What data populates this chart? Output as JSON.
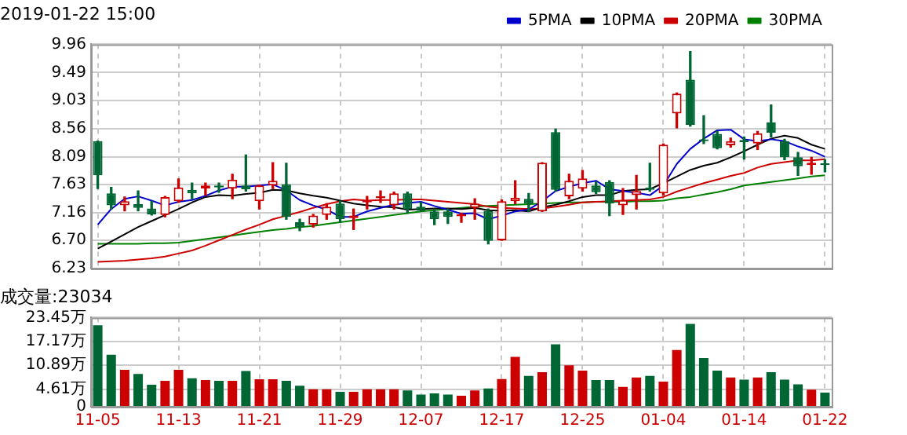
{
  "chart_data": [
    {
      "type": "candlestick",
      "title": "2019-01-22 15:00",
      "categories": [
        null,
        null,
        null,
        null,
        null,
        null,
        null,
        null,
        null,
        null,
        null,
        null,
        null,
        null,
        null,
        null,
        null,
        null,
        null,
        null,
        null,
        null,
        null,
        null,
        null,
        null,
        null,
        null,
        null,
        null,
        null,
        null,
        null,
        null,
        null,
        null,
        null,
        null,
        null,
        null,
        null,
        null,
        null,
        null,
        null,
        null,
        null,
        null,
        null,
        null,
        null,
        null,
        null,
        null,
        null
      ],
      "ohlc": [
        [
          8.35,
          8.35,
          7.56,
          7.78
        ],
        [
          7.48,
          7.58,
          7.22,
          7.28
        ],
        [
          7.28,
          7.42,
          7.19,
          7.35
        ],
        [
          7.3,
          7.52,
          7.19,
          7.24
        ],
        [
          7.23,
          7.35,
          7.12,
          7.13
        ],
        [
          7.12,
          7.43,
          7.09,
          7.42
        ],
        [
          7.35,
          7.72,
          7.33,
          7.58
        ],
        [
          7.54,
          7.65,
          7.39,
          7.48
        ],
        [
          7.56,
          7.65,
          7.45,
          7.61
        ],
        [
          7.61,
          7.65,
          7.5,
          7.58
        ],
        [
          7.56,
          7.8,
          7.39,
          7.71
        ],
        [
          7.61,
          8.12,
          7.52,
          7.55
        ],
        [
          7.35,
          7.62,
          7.22,
          7.61
        ],
        [
          7.61,
          7.99,
          7.56,
          7.69
        ],
        [
          7.63,
          7.98,
          7.05,
          7.09
        ],
        [
          7.0,
          7.05,
          6.86,
          6.92
        ],
        [
          6.96,
          7.13,
          6.92,
          7.11
        ],
        [
          7.12,
          7.31,
          7.05,
          7.26
        ],
        [
          7.31,
          7.35,
          7.0,
          7.05
        ],
        [
          7.07,
          7.22,
          6.88,
          7.11
        ],
        [
          7.33,
          7.43,
          7.22,
          7.37
        ],
        [
          7.4,
          7.52,
          7.33,
          7.43
        ],
        [
          7.28,
          7.5,
          7.22,
          7.48
        ],
        [
          7.48,
          7.5,
          7.15,
          7.22
        ],
        [
          7.26,
          7.33,
          7.18,
          7.19
        ],
        [
          7.18,
          7.22,
          6.96,
          7.05
        ],
        [
          7.18,
          7.22,
          6.98,
          7.09
        ],
        [
          7.1,
          7.15,
          7.0,
          7.13
        ],
        [
          7.24,
          7.39,
          7.05,
          7.31
        ],
        [
          7.19,
          7.22,
          6.64,
          6.69
        ],
        [
          6.7,
          7.37,
          6.7,
          7.35
        ],
        [
          7.35,
          7.69,
          7.31,
          7.41
        ],
        [
          7.39,
          7.48,
          7.18,
          7.31
        ],
        [
          7.18,
          7.99,
          7.18,
          7.99
        ],
        [
          8.5,
          8.55,
          7.52,
          7.54
        ],
        [
          7.43,
          7.8,
          7.39,
          7.69
        ],
        [
          7.56,
          7.86,
          7.52,
          7.73
        ],
        [
          7.61,
          7.67,
          7.48,
          7.5
        ],
        [
          7.67,
          7.69,
          7.11,
          7.31
        ],
        [
          7.28,
          7.56,
          7.13,
          7.37
        ],
        [
          7.45,
          7.78,
          7.22,
          7.52
        ],
        [
          7.58,
          7.98,
          7.52,
          7.54
        ],
        [
          7.48,
          8.3,
          7.45,
          8.29
        ],
        [
          8.81,
          9.15,
          8.57,
          9.14
        ],
        [
          9.37,
          9.84,
          8.6,
          8.62
        ],
        [
          8.38,
          8.77,
          8.31,
          8.35
        ],
        [
          8.47,
          8.51,
          8.22,
          8.23
        ],
        [
          8.28,
          8.4,
          8.25,
          8.35
        ],
        [
          8.37,
          8.42,
          8.05,
          8.33
        ],
        [
          8.31,
          8.51,
          8.21,
          8.48
        ],
        [
          8.66,
          8.95,
          8.42,
          8.49
        ],
        [
          8.35,
          8.38,
          8.04,
          8.08
        ],
        [
          8.08,
          8.16,
          7.78,
          7.93
        ],
        [
          7.95,
          8.08,
          7.8,
          7.99
        ],
        [
          7.98,
          8.04,
          7.84,
          7.95
        ]
      ],
      "colors": [
        "#006633",
        "#006633",
        "#cc0000",
        "#006633",
        "#006633",
        "#cc0000",
        "#cc0000",
        "#006633",
        "#cc0000",
        "#006633",
        "#cc0000",
        "#006633",
        "#cc0000",
        "#cc0000",
        "#006633",
        "#006633",
        "#cc0000",
        "#cc0000",
        "#006633",
        "#cc0000",
        "#cc0000",
        "#cc0000",
        "#cc0000",
        "#006633",
        "#006633",
        "#006633",
        "#006633",
        "#cc0000",
        "#cc0000",
        "#006633",
        "#cc0000",
        "#cc0000",
        "#006633",
        "#cc0000",
        "#006633",
        "#cc0000",
        "#cc0000",
        "#006633",
        "#006633",
        "#cc0000",
        "#cc0000",
        "#006633",
        "#cc0000",
        "#cc0000",
        "#006633",
        "#006633",
        "#006633",
        "#cc0000",
        "#006633",
        "#cc0000",
        "#006633",
        "#006633",
        "#006633",
        "#cc0000",
        "#006633"
      ],
      "series": [
        {
          "name": "5PMA",
          "type": "line",
          "color": "#0000cc",
          "values": [
            6.96,
            7.22,
            7.39,
            7.43,
            7.36,
            7.28,
            7.34,
            7.37,
            7.44,
            7.53,
            7.59,
            7.59,
            7.61,
            7.63,
            7.53,
            7.37,
            7.28,
            7.21,
            7.09,
            7.09,
            7.18,
            7.24,
            7.29,
            7.32,
            7.34,
            7.27,
            7.21,
            7.14,
            7.15,
            7.05,
            7.11,
            7.18,
            7.21,
            7.35,
            7.52,
            7.59,
            7.65,
            7.69,
            7.55,
            7.52,
            7.49,
            7.45,
            7.61,
            7.97,
            8.22,
            8.39,
            8.53,
            8.54,
            8.38,
            8.35,
            8.38,
            8.35,
            8.26,
            8.19,
            8.09
          ]
        },
        {
          "name": "10PMA",
          "type": "line",
          "color": "#000000",
          "values": [
            6.56,
            6.68,
            6.8,
            6.92,
            7.02,
            7.12,
            7.22,
            7.33,
            7.42,
            7.45,
            7.44,
            7.47,
            7.49,
            7.54,
            7.53,
            7.48,
            7.44,
            7.41,
            7.36,
            7.31,
            7.28,
            7.26,
            7.25,
            7.21,
            7.22,
            7.23,
            7.23,
            7.22,
            7.24,
            7.2,
            7.19,
            7.2,
            7.18,
            7.25,
            7.29,
            7.35,
            7.42,
            7.45,
            7.45,
            7.52,
            7.54,
            7.55,
            7.65,
            7.76,
            7.87,
            7.94,
            7.99,
            8.08,
            8.18,
            8.29,
            8.39,
            8.44,
            8.4,
            8.29,
            8.22
          ]
        },
        {
          "name": "20PMA",
          "type": "line",
          "color": "#cc0000",
          "values": [
            6.34,
            6.35,
            6.36,
            6.38,
            6.4,
            6.43,
            6.48,
            6.53,
            6.61,
            6.7,
            6.79,
            6.88,
            6.96,
            7.05,
            7.11,
            7.17,
            7.24,
            7.3,
            7.35,
            7.38,
            7.36,
            7.37,
            7.37,
            7.38,
            7.38,
            7.36,
            7.34,
            7.32,
            7.3,
            7.26,
            7.24,
            7.23,
            7.22,
            7.23,
            7.26,
            7.29,
            7.33,
            7.34,
            7.35,
            7.36,
            7.37,
            7.38,
            7.42,
            7.51,
            7.58,
            7.65,
            7.71,
            7.77,
            7.82,
            7.91,
            7.97,
            8.0,
            8.03,
            8.03,
            8.05
          ]
        },
        {
          "name": "30PMA",
          "type": "line",
          "color": "#008000",
          "values": [
            6.64,
            6.64,
            6.64,
            6.64,
            6.65,
            6.65,
            6.66,
            6.69,
            6.72,
            6.75,
            6.78,
            6.81,
            6.84,
            6.87,
            6.89,
            6.92,
            6.94,
            6.97,
            7.0,
            7.03,
            7.06,
            7.09,
            7.12,
            7.15,
            7.18,
            7.2,
            7.22,
            7.24,
            7.26,
            7.27,
            7.28,
            7.29,
            7.3,
            7.31,
            7.32,
            7.33,
            7.33,
            7.34,
            7.34,
            7.34,
            7.35,
            7.35,
            7.36,
            7.4,
            7.42,
            7.46,
            7.5,
            7.55,
            7.61,
            7.64,
            7.67,
            7.7,
            7.73,
            7.76,
            7.78
          ]
        }
      ],
      "ylim": [
        6.23,
        9.96
      ],
      "yticks": [
        6.23,
        {
          "value": 6.7,
          "label": "6.70"
        },
        7.16,
        7.63,
        8.09,
        8.56,
        9.03,
        9.49,
        9.96
      ],
      "grid": true,
      "legend": "top right",
      "marker": "none",
      "tick_labels": "y"
    },
    {
      "type": "bar",
      "title": "成交量:23034",
      "categories": [
        "11-05",
        null,
        null,
        null,
        null,
        null,
        "11-13",
        null,
        null,
        null,
        null,
        null,
        "11-21",
        null,
        null,
        null,
        null,
        null,
        "11-29",
        null,
        null,
        null,
        null,
        null,
        "12-07",
        null,
        null,
        null,
        null,
        null,
        "12-17",
        null,
        null,
        null,
        null,
        null,
        "12-25",
        null,
        null,
        null,
        null,
        null,
        "01-04",
        null,
        null,
        null,
        null,
        null,
        "01-14",
        null,
        null,
        null,
        null,
        null,
        "01-22"
      ],
      "values": [
        21.4,
        13.7,
        9.7,
        8.6,
        5.8,
        6.8,
        9.7,
        7.5,
        7.0,
        6.8,
        6.8,
        9.4,
        7.2,
        7.2,
        6.8,
        5.5,
        4.6,
        4.6,
        3.9,
        3.9,
        4.6,
        4.6,
        4.6,
        4.3,
        3.2,
        3.5,
        3.2,
        2.9,
        4.3,
        4.8,
        7.3,
        13.1,
        8.1,
        9.1,
        16.4,
        10.9,
        9.5,
        7.0,
        7.0,
        5.2,
        7.7,
        8.1,
        6.6,
        14.9,
        21.8,
        12.8,
        9.5,
        7.7,
        7.1,
        7.7,
        9.1,
        7.1,
        5.9,
        4.5,
        3.7
      ],
      "colors": [
        "#006633",
        "#006633",
        "#cc0000",
        "#006633",
        "#006633",
        "#cc0000",
        "#cc0000",
        "#006633",
        "#cc0000",
        "#006633",
        "#cc0000",
        "#006633",
        "#cc0000",
        "#cc0000",
        "#006633",
        "#006633",
        "#cc0000",
        "#cc0000",
        "#006633",
        "#cc0000",
        "#cc0000",
        "#cc0000",
        "#cc0000",
        "#006633",
        "#006633",
        "#006633",
        "#006633",
        "#cc0000",
        "#cc0000",
        "#006633",
        "#cc0000",
        "#cc0000",
        "#006633",
        "#cc0000",
        "#006633",
        "#cc0000",
        "#cc0000",
        "#006633",
        "#006633",
        "#cc0000",
        "#cc0000",
        "#006633",
        "#cc0000",
        "#cc0000",
        "#006633",
        "#006633",
        "#006633",
        "#cc0000",
        "#006633",
        "#cc0000",
        "#006633",
        "#006633",
        "#006633",
        "#cc0000",
        "#006633"
      ],
      "ylim": [
        0,
        23.45
      ],
      "yticks": [
        0,
        {
          "value": 4.61,
          "label": "4.61万"
        },
        {
          "value": 10.89,
          "label": "10.89万"
        },
        {
          "value": 17.17,
          "label": "17.17万"
        },
        {
          "value": 23.45,
          "label": "23.45万"
        }
      ],
      "grid": true
    }
  ]
}
